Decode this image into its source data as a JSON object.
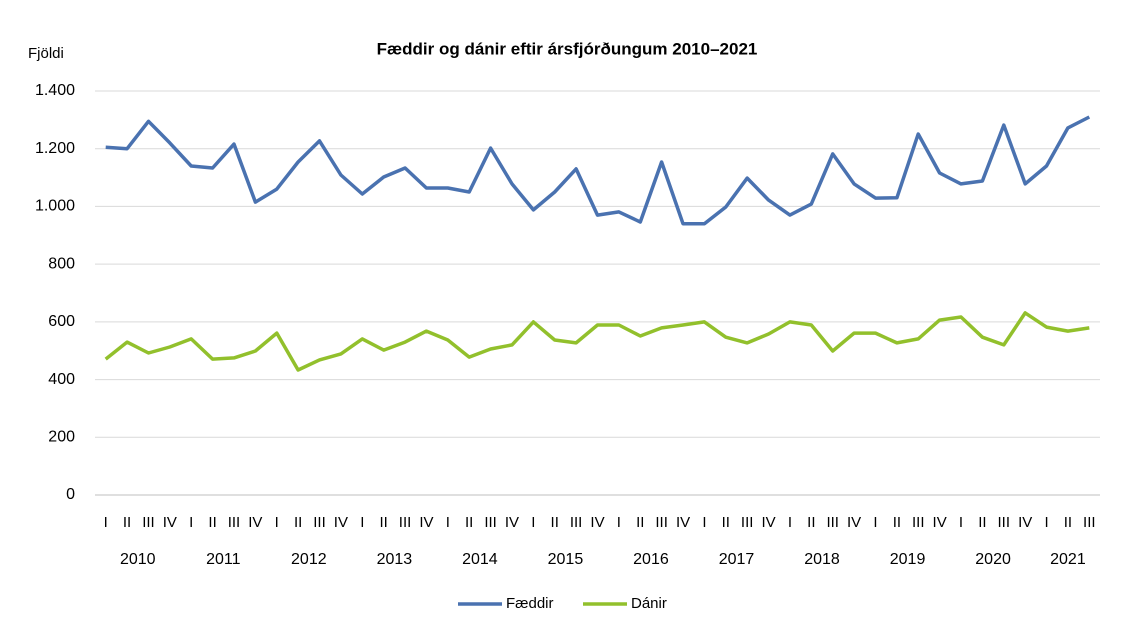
{
  "chart_data": {
    "type": "line",
    "title": "Fæddir og dánir eftir ársfjórðungum 2010–2021",
    "y_label": "Fjöldi",
    "categories": [
      "I",
      "II",
      "III",
      "IV",
      "I",
      "II",
      "III",
      "IV",
      "I",
      "II",
      "III",
      "IV",
      "I",
      "II",
      "III",
      "IV",
      "I",
      "II",
      "III",
      "IV",
      "I",
      "II",
      "III",
      "IV",
      "I",
      "II",
      "III",
      "IV",
      "I",
      "II",
      "III",
      "IV",
      "I",
      "II",
      "III",
      "IV",
      "I",
      "II",
      "III",
      "IV",
      "I",
      "II",
      "III",
      "IV",
      "I",
      "II",
      "III"
    ],
    "category_groups": [
      "2010",
      "2011",
      "2012",
      "2013",
      "2014",
      "2015",
      "2016",
      "2017",
      "2018",
      "2019",
      "2020",
      "2021"
    ],
    "series": [
      {
        "name": "Fæddir",
        "color": "#4a72b0",
        "values": [
          1205,
          1200,
          1295,
          1220,
          1140,
          1133,
          1216,
          1015,
          1060,
          1154,
          1227,
          1109,
          1043,
          1102,
          1133,
          1064,
          1064,
          1050,
          1202,
          1078,
          988,
          1050,
          1130,
          970,
          981,
          946,
          1154,
          940,
          940,
          998,
          1098,
          1022,
          970,
          1008,
          1182,
          1078,
          1029,
          1030,
          1251,
          1116,
          1078,
          1088,
          1282,
          1078,
          1140,
          1272,
          1310
        ]
      },
      {
        "name": "Dánir",
        "color": "#92c02c",
        "values": [
          471,
          530,
          492,
          513,
          541,
          471,
          475,
          499,
          561,
          433,
          468,
          489,
          541,
          502,
          530,
          568,
          537,
          478,
          506,
          520,
          600,
          537,
          527,
          589,
          589,
          551,
          579,
          589,
          600,
          547,
          527,
          558,
          600,
          589,
          499,
          561,
          561,
          527,
          541,
          606,
          617,
          547,
          520,
          631,
          582,
          568,
          579
        ]
      }
    ],
    "ylim": [
      0,
      1400
    ],
    "yticks": [
      0,
      200,
      400,
      600,
      800,
      {
        "value": 1000,
        "label": "1.000"
      },
      {
        "value": 1200,
        "label": "1.200"
      },
      {
        "value": 1400,
        "label": "1.400"
      }
    ],
    "grid": true,
    "legend": "bottom"
  }
}
